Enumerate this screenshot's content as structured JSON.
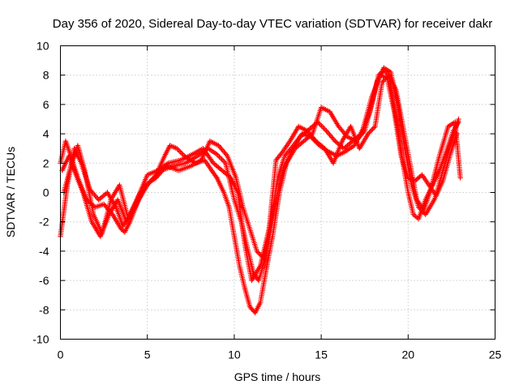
{
  "chart_data": {
    "type": "scatter",
    "title": "Day 356 of 2020, Sidereal Day-to-day VTEC variation (SDTVAR) for receiver dakr",
    "xlabel": "GPS time / hours",
    "ylabel": "SDTVAR / TECUs",
    "xlim": [
      0,
      25
    ],
    "ylim": [
      -10,
      10
    ],
    "xticks": [
      "0",
      "5",
      "10",
      "15",
      "20",
      "25"
    ],
    "yticks": [
      "-10",
      "-8",
      "-6",
      "-4",
      "-2",
      "0",
      "2",
      "4",
      "6",
      "8",
      "10"
    ],
    "grid": true,
    "marker": "plus",
    "series": [
      {
        "name": "sat-track-a",
        "color": "#ff0000",
        "x": [
          0.0,
          0.3,
          0.6,
          1.0,
          1.5,
          2.0,
          2.5,
          3.0,
          3.5,
          3.7,
          4.0,
          4.5,
          5.0,
          5.5,
          6.0,
          6.3,
          6.7,
          7.2,
          7.8,
          8.3,
          8.7,
          9.0,
          9.4,
          9.7,
          10.0,
          10.3,
          10.6,
          10.9,
          11.2,
          11.5,
          11.8,
          12.2,
          12.6,
          13.0,
          13.5,
          14.0,
          14.5,
          15.0,
          15.5,
          16.0,
          16.5,
          17.0,
          17.5,
          18.0,
          18.3,
          18.6,
          18.9,
          19.1,
          19.4,
          19.7,
          20.0,
          20.3,
          20.6,
          21.0,
          21.4,
          21.8,
          22.2,
          22.6,
          22.9
        ],
        "y": [
          2.0,
          3.5,
          2.5,
          1.0,
          -0.5,
          -1.0,
          -0.8,
          -1.5,
          -2.5,
          -2.7,
          -2.0,
          -0.5,
          0.5,
          1.2,
          2.5,
          3.2,
          3.0,
          2.4,
          2.0,
          2.2,
          1.5,
          1.0,
          0.0,
          -1.0,
          -3.0,
          -5.0,
          -6.5,
          -7.8,
          -8.2,
          -7.5,
          -5.5,
          -3.0,
          0.0,
          2.0,
          3.0,
          3.5,
          4.0,
          5.8,
          5.5,
          4.5,
          3.8,
          3.5,
          4.2,
          6.5,
          8.0,
          8.3,
          8.0,
          6.5,
          4.5,
          2.0,
          0.0,
          -1.5,
          -1.8,
          -0.5,
          0.5,
          1.5,
          2.8,
          4.2,
          4.8
        ]
      },
      {
        "name": "sat-track-b",
        "color": "#ff0000",
        "x": [
          0.0,
          0.4,
          0.8,
          1.2,
          1.7,
          2.2,
          2.7,
          3.2,
          3.6,
          4.0,
          4.6,
          5.2,
          5.8,
          6.5,
          7.2,
          7.9,
          8.5,
          9.0,
          9.5,
          10.0,
          10.4,
          10.8,
          11.1,
          11.4,
          11.8,
          12.3,
          12.8,
          13.3,
          13.8,
          14.3,
          14.8,
          15.3,
          15.8,
          16.3,
          16.8,
          17.3,
          17.8,
          18.2,
          18.6,
          19.0,
          19.4,
          19.8,
          20.2,
          20.6,
          21.0,
          21.5,
          22.0,
          22.4,
          22.8
        ],
        "y": [
          -3.0,
          0.5,
          3.0,
          2.0,
          0.2,
          -0.5,
          0.0,
          -1.0,
          -2.3,
          -1.5,
          0.0,
          0.8,
          1.5,
          1.8,
          2.0,
          2.5,
          3.0,
          2.6,
          2.0,
          -0.5,
          -2.0,
          -4.0,
          -5.5,
          -6.0,
          -4.5,
          -1.0,
          1.5,
          2.8,
          3.8,
          4.3,
          4.8,
          4.2,
          3.5,
          3.0,
          3.5,
          4.0,
          5.5,
          7.5,
          8.5,
          8.2,
          6.0,
          3.0,
          0.5,
          -1.0,
          -1.5,
          -0.5,
          0.8,
          2.5,
          4.0
        ]
      },
      {
        "name": "sat-track-c",
        "color": "#ff0000",
        "x": [
          0.1,
          0.5,
          0.9,
          1.3,
          1.8,
          2.3,
          2.8,
          3.3,
          3.8,
          4.3,
          4.9,
          5.5,
          6.1,
          6.8,
          7.5,
          8.1,
          8.6,
          9.1,
          9.6,
          10.1,
          10.5,
          10.9,
          11.3,
          11.7,
          12.1,
          12.5,
          12.9,
          13.4,
          13.9,
          14.4,
          14.9,
          15.4,
          15.9,
          16.4,
          16.9,
          17.4,
          17.9,
          18.4,
          18.8,
          19.2,
          19.6,
          20.0,
          20.4,
          20.8,
          21.2,
          21.6,
          22.0,
          22.5,
          22.9
        ],
        "y": [
          1.5,
          2.5,
          1.2,
          0.0,
          -2.0,
          -3.0,
          -1.5,
          -0.5,
          -2.0,
          -1.0,
          0.5,
          1.0,
          1.8,
          1.5,
          1.8,
          2.2,
          3.5,
          3.2,
          2.5,
          1.0,
          -1.0,
          -2.5,
          -4.0,
          -4.5,
          -2.0,
          1.0,
          2.5,
          3.2,
          4.0,
          3.8,
          3.2,
          2.8,
          2.5,
          2.8,
          3.2,
          4.3,
          6.5,
          8.0,
          7.8,
          5.5,
          2.5,
          1.0,
          0.8,
          1.2,
          0.5,
          -0.2,
          1.5,
          3.5,
          5.0
        ]
      },
      {
        "name": "sat-track-d",
        "color": "#ff0000",
        "x": [
          0.2,
          0.6,
          1.0,
          1.4,
          1.9,
          2.4,
          2.9,
          3.4,
          3.9,
          4.4,
          5.0,
          5.6,
          6.2,
          6.9,
          7.6,
          8.2,
          8.8,
          9.3,
          9.8,
          10.2,
          10.6,
          11.0,
          11.5,
          12.0,
          12.4,
          12.8,
          13.2,
          13.7,
          14.2,
          14.7,
          15.2,
          15.7,
          16.2,
          16.7,
          17.2,
          17.7,
          18.1,
          18.5,
          18.9,
          19.3,
          19.7,
          20.1,
          20.5,
          20.9,
          21.3,
          21.8,
          22.3,
          22.7,
          23.0
        ],
        "y": [
          0.0,
          1.8,
          3.2,
          1.5,
          -1.5,
          -2.8,
          -0.5,
          0.5,
          -1.8,
          -0.5,
          1.2,
          1.5,
          2.0,
          2.2,
          2.6,
          3.0,
          2.0,
          1.5,
          1.0,
          0.0,
          -3.5,
          -6.0,
          -5.0,
          -2.5,
          2.2,
          2.8,
          3.5,
          4.5,
          4.2,
          3.5,
          3.0,
          2.0,
          3.5,
          4.5,
          3.0,
          4.0,
          4.5,
          7.5,
          8.0,
          7.0,
          4.5,
          2.0,
          -0.5,
          -1.2,
          0.2,
          2.5,
          4.5,
          4.8,
          1.0
        ]
      }
    ]
  }
}
